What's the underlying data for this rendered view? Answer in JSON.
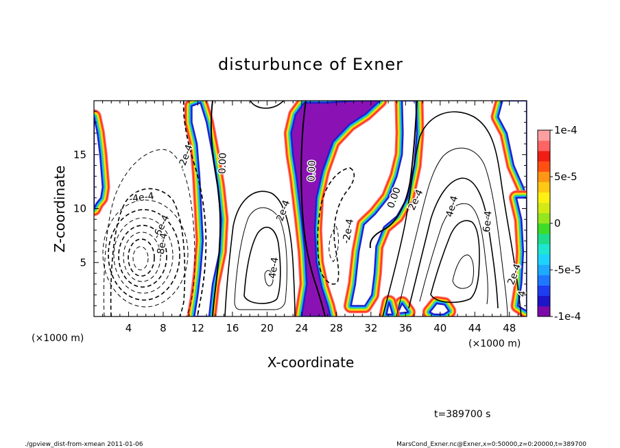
{
  "chart_data": {
    "type": "heatmap",
    "title": "disturbunce of Exner",
    "xlabel": "X-coordinate",
    "ylabel": "Z-coordinate",
    "x_unit": "(×1000 m)",
    "y_unit": "(×1000 m)",
    "xlim": [
      0,
      50
    ],
    "ylim": [
      0,
      20
    ],
    "x_ticks": [
      4,
      8,
      12,
      16,
      20,
      24,
      28,
      32,
      36,
      40,
      44,
      48
    ],
    "y_ticks": [
      5,
      10,
      15
    ],
    "x_tick_labels": [
      "4",
      "8",
      "12",
      "16",
      "20",
      "24",
      "28",
      "32",
      "36",
      "40",
      "44",
      "48"
    ],
    "y_tick_labels": [
      "5",
      "10",
      "15"
    ],
    "colorbar": {
      "range": [
        -0.0001,
        0.0001
      ],
      "labels": [
        "1e-4",
        "5e-5",
        "0",
        "-5e-5",
        "-1e-4"
      ],
      "label_values": [
        0.0001,
        5e-05,
        0,
        -5e-05,
        -0.0001
      ],
      "colors": [
        "#7b0aa8",
        "#1e14c8",
        "#1e3cf0",
        "#1e78ff",
        "#1eaaff",
        "#1ed2ff",
        "#1ee6d2",
        "#1edc8c",
        "#3cdc28",
        "#96e61e",
        "#d2eb14",
        "#fff014",
        "#ffc814",
        "#ff9614",
        "#ff5014",
        "#f01e14",
        "#ff6464",
        "#ffa0a0"
      ]
    },
    "bands": [
      {
        "points": [
          [
            0,
            18.5
          ],
          [
            0.4,
            17
          ],
          [
            0.7,
            15
          ],
          [
            1.0,
            12
          ],
          [
            0.8,
            11
          ],
          [
            0.3,
            10.5
          ],
          [
            0,
            10
          ]
        ]
      },
      {
        "points": [
          [
            11.6,
            0
          ],
          [
            12,
            2
          ],
          [
            12.3,
            4
          ],
          [
            12.6,
            7
          ],
          [
            12.4,
            10
          ],
          [
            12.2,
            13
          ],
          [
            11.9,
            16
          ],
          [
            11.3,
            18
          ],
          [
            11.3,
            19.5
          ],
          [
            12.3,
            19.8
          ],
          [
            13,
            18
          ],
          [
            13.7,
            15
          ],
          [
            14.3,
            12
          ],
          [
            14.7,
            9
          ],
          [
            14.5,
            6
          ],
          [
            13.7,
            3
          ],
          [
            13.3,
            0
          ]
        ]
      },
      {
        "points": [
          [
            24,
            0
          ],
          [
            24.3,
            1.5
          ],
          [
            24.6,
            3
          ],
          [
            24.4,
            6
          ],
          [
            24,
            9
          ],
          [
            23.7,
            11
          ],
          [
            23.4,
            13
          ],
          [
            23,
            15
          ],
          [
            22.8,
            17
          ],
          [
            23.3,
            18.7
          ],
          [
            24.3,
            19.8
          ],
          [
            27,
            19.8
          ],
          [
            30.5,
            20
          ],
          [
            33,
            20
          ],
          [
            31.4,
            18.8
          ],
          [
            29.5,
            17.8
          ],
          [
            27.6,
            16.2
          ],
          [
            26.4,
            13.5
          ],
          [
            25.7,
            11
          ],
          [
            25.5,
            8
          ],
          [
            25.7,
            5
          ],
          [
            26.3,
            2.7
          ],
          [
            27,
            1
          ],
          [
            27.3,
            0
          ]
        ]
      },
      {
        "points": [
          [
            29.7,
            1
          ],
          [
            30.2,
            3
          ],
          [
            30.6,
            6
          ],
          [
            31.2,
            8.5
          ],
          [
            32.5,
            9.5
          ],
          [
            34,
            11
          ],
          [
            35,
            13
          ],
          [
            35.6,
            15
          ],
          [
            35.7,
            17
          ],
          [
            35.6,
            20
          ],
          [
            37.2,
            20
          ],
          [
            37.3,
            17
          ],
          [
            37,
            14
          ],
          [
            36.2,
            11
          ],
          [
            35,
            9.3
          ],
          [
            33.5,
            8.3
          ],
          [
            32.6,
            6.5
          ],
          [
            32.4,
            4
          ],
          [
            32.1,
            2
          ],
          [
            31.3,
            1
          ]
        ]
      },
      {
        "points": [
          [
            47.2,
            20
          ],
          [
            46.7,
            18.5
          ],
          [
            47.7,
            17
          ],
          [
            48.5,
            14
          ],
          [
            49.6,
            12
          ],
          [
            50,
            11
          ],
          [
            50,
            20
          ]
        ]
      },
      {
        "points": [
          [
            48.8,
            11
          ],
          [
            49.4,
            9
          ],
          [
            49.6,
            6
          ],
          [
            49.4,
            3
          ],
          [
            49,
            1
          ],
          [
            50,
            0.5
          ],
          [
            50,
            11
          ]
        ]
      },
      {
        "points": [
          [
            38.8,
            0.4
          ],
          [
            39.6,
            1.2
          ],
          [
            40.5,
            1.1
          ],
          [
            41,
            0.5
          ],
          [
            40.4,
            0.2
          ],
          [
            39.3,
            0.2
          ]
        ]
      },
      {
        "points": [
          [
            35.1,
            0.3
          ],
          [
            35.6,
            1.2
          ],
          [
            36.3,
            0.4
          ]
        ]
      },
      {
        "points": [
          [
            33.8,
            0.2
          ],
          [
            34.1,
            1.3
          ],
          [
            34.5,
            0.2
          ]
        ]
      }
    ],
    "contour_labels": [
      {
        "text": "-2e-4",
        "x": 10.6,
        "y": 14.8,
        "angle": -70
      },
      {
        "text": "0.00",
        "x": 14.9,
        "y": 14.2,
        "angle": -88
      },
      {
        "text": "-4e-4",
        "x": 5.5,
        "y": 11.0,
        "angle": -8
      },
      {
        "text": "-6e-4",
        "x": 7.8,
        "y": 8.3,
        "angle": -65
      },
      {
        "text": "-8e-4",
        "x": 7.9,
        "y": 6.6,
        "angle": -80
      },
      {
        "text": "2e-4",
        "x": 21.9,
        "y": 9.8,
        "angle": -70
      },
      {
        "text": "0.00",
        "x": 25.2,
        "y": 13.5,
        "angle": -88
      },
      {
        "text": "4e-4",
        "x": 20.8,
        "y": 4.5,
        "angle": -82
      },
      {
        "text": "-2e-4",
        "x": 29.4,
        "y": 7.9,
        "angle": -80
      },
      {
        "text": "0.00",
        "x": 34.7,
        "y": 11.0,
        "angle": -70
      },
      {
        "text": "2e-4",
        "x": 37.2,
        "y": 10.8,
        "angle": -65
      },
      {
        "text": "4e-4",
        "x": 41.4,
        "y": 10.2,
        "angle": -75
      },
      {
        "text": "6e-4",
        "x": 45.5,
        "y": 8.8,
        "angle": -85
      },
      {
        "text": "2e-4",
        "x": 48.6,
        "y": 3.9,
        "angle": -70
      },
      {
        "text": "4",
        "x": 49.5,
        "y": 2.1,
        "angle": -80
      }
    ]
  },
  "time_label": "t=389700 s",
  "footer_left": "./gpview_dist-from-xmean  2011-01-06",
  "footer_right": "MarsCond_Exner.nc@Exner,x=0:50000,z=0:20000,t=389700"
}
